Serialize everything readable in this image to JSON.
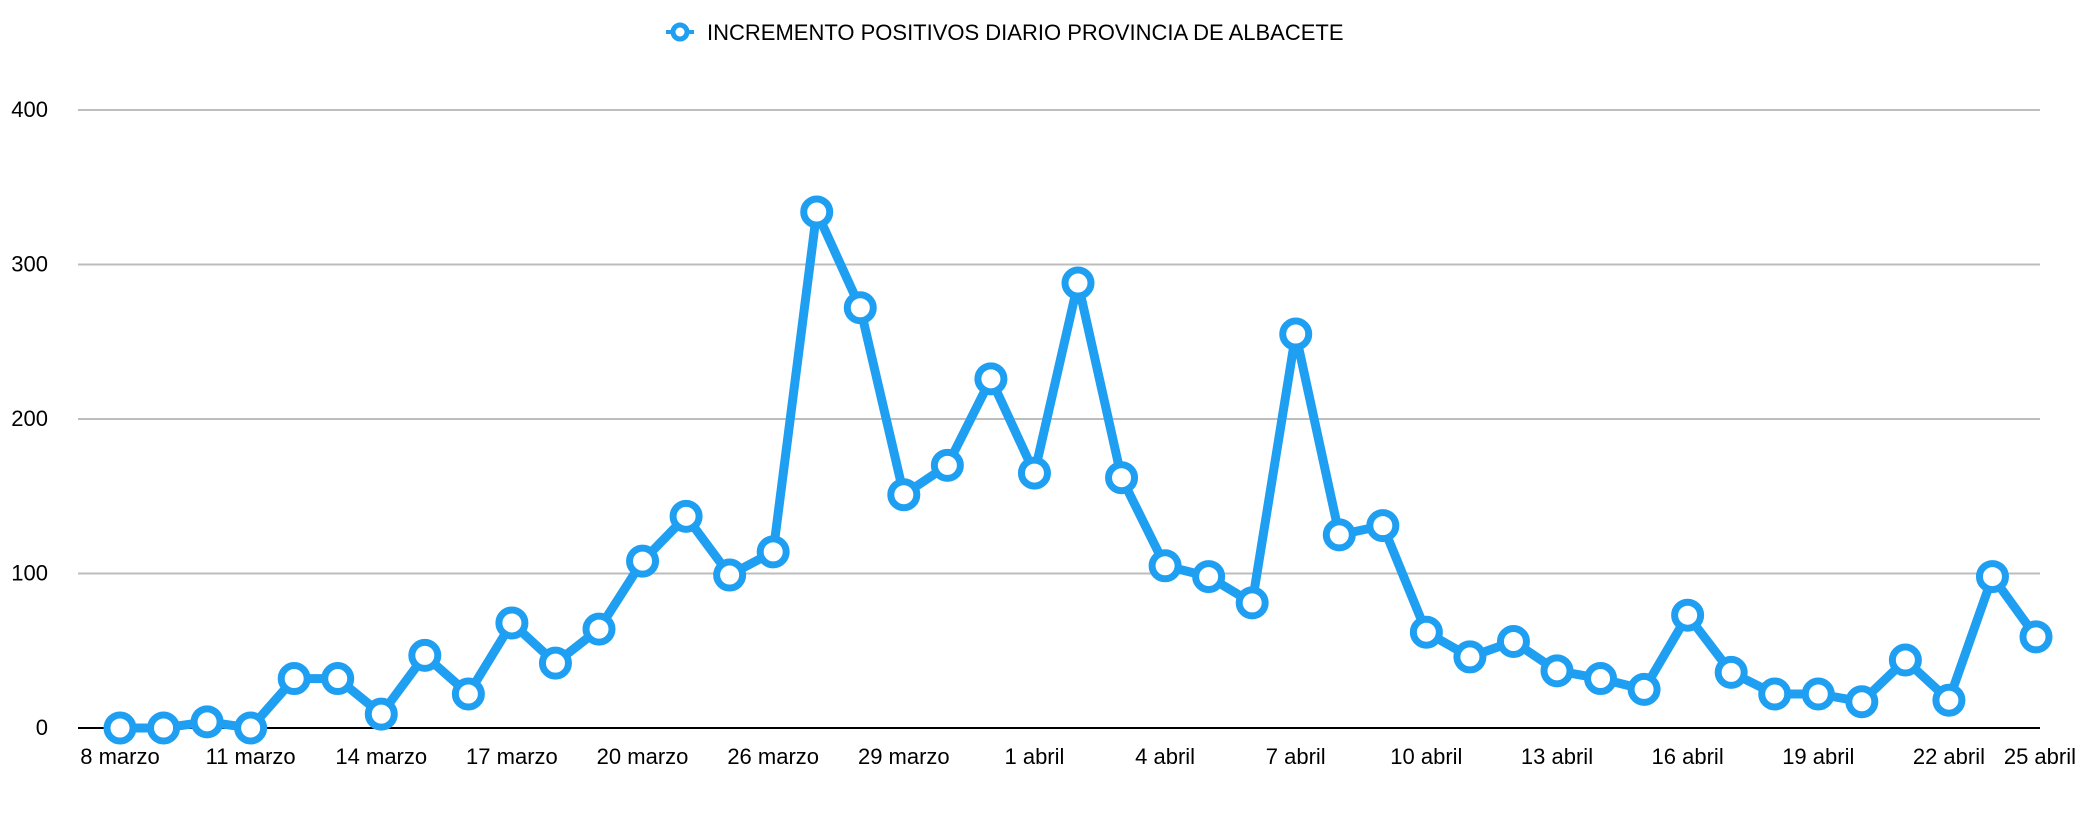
{
  "chart_data": {
    "type": "line",
    "title": "",
    "xlabel": "",
    "ylabel": "",
    "ylim": [
      0,
      400
    ],
    "yticks": [
      0,
      100,
      200,
      300,
      400
    ],
    "grid": true,
    "legend_position": "top-center",
    "xtick_labels": [
      "8 marzo",
      "11 marzo",
      "14 marzo",
      "17 marzo",
      "20 marzo",
      "26 marzo",
      "29 marzo",
      "1 abril",
      "4 abril",
      "7 abril",
      "10 abril",
      "13 abril",
      "16 abril",
      "19 abril",
      "22 abril",
      "25 abril"
    ],
    "series": [
      {
        "name": "INCREMENTO POSITIVOS DIARIO PROVINCIA DE ALBACETE",
        "color": "#1e9ff2",
        "values": [
          0,
          0,
          4,
          0,
          32,
          32,
          9,
          47,
          22,
          68,
          42,
          64,
          108,
          137,
          99,
          114,
          334,
          272,
          151,
          170,
          226,
          165,
          288,
          162,
          105,
          98,
          81,
          255,
          125,
          131,
          62,
          46,
          56,
          37,
          32,
          25,
          73,
          36,
          22,
          22,
          17,
          44,
          18,
          98,
          59
        ]
      }
    ]
  }
}
